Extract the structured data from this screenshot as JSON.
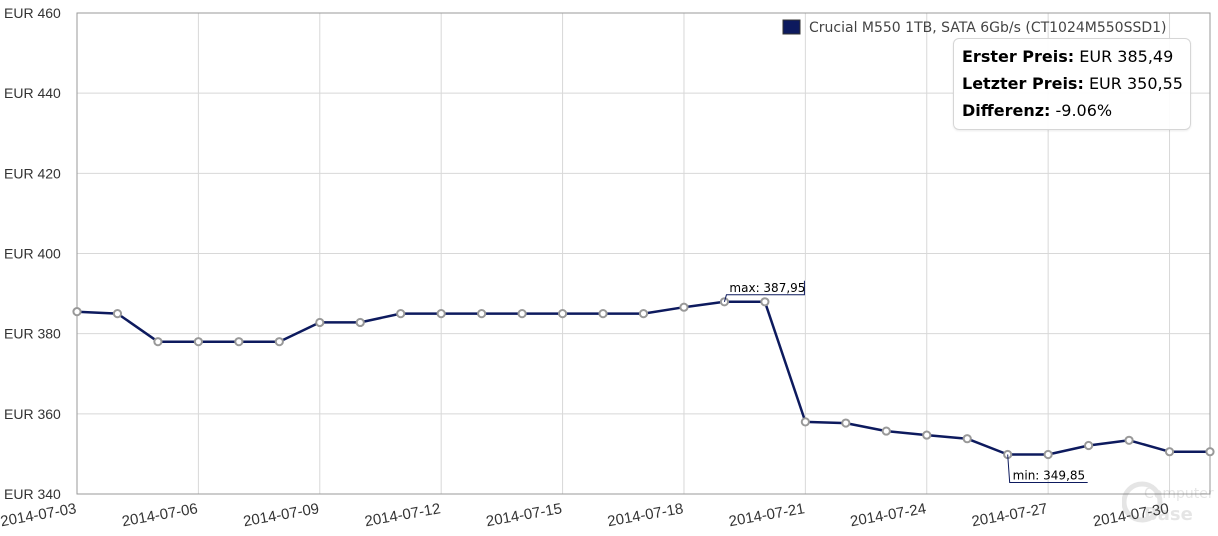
{
  "chart_data": {
    "type": "line",
    "y_tick_labels": [
      "EUR 460",
      "EUR 440",
      "EUR 420",
      "EUR 400",
      "EUR 380",
      "EUR 360",
      "EUR 340"
    ],
    "y_ticks": [
      460,
      440,
      420,
      400,
      380,
      360,
      340
    ],
    "ylim": [
      340,
      460
    ],
    "x_tick_labels": [
      "2014-07-03",
      "2014-07-06",
      "2014-07-09",
      "2014-07-12",
      "2014-07-15",
      "2014-07-18",
      "2014-07-21",
      "2014-07-24",
      "2014-07-27",
      "2014-07-30"
    ],
    "xlim": [
      "2014-07-03",
      "2014-07-31"
    ],
    "grid": true,
    "legend_position": "top-right",
    "series": [
      {
        "name": "Crucial M550 1TB, SATA 6Gb/s (CT1024M550SSD1)",
        "color": "#0d1a5e",
        "x": [
          "2014-07-03",
          "2014-07-04",
          "2014-07-05",
          "2014-07-06",
          "2014-07-07",
          "2014-07-08",
          "2014-07-09",
          "2014-07-10",
          "2014-07-11",
          "2014-07-12",
          "2014-07-13",
          "2014-07-14",
          "2014-07-15",
          "2014-07-16",
          "2014-07-17",
          "2014-07-18",
          "2014-07-19",
          "2014-07-20",
          "2014-07-21",
          "2014-07-22",
          "2014-07-23",
          "2014-07-24",
          "2014-07-25",
          "2014-07-26",
          "2014-07-27",
          "2014-07-28",
          "2014-07-29",
          "2014-07-30",
          "2014-07-31"
        ],
        "values": [
          385.49,
          385.0,
          378.0,
          378.0,
          378.0,
          378.0,
          382.8,
          382.8,
          385.0,
          385.0,
          385.0,
          385.0,
          385.0,
          385.0,
          385.0,
          386.6,
          387.95,
          387.95,
          358.0,
          357.7,
          355.7,
          354.7,
          353.8,
          349.85,
          349.85,
          352.1,
          353.4,
          350.55,
          350.55
        ]
      }
    ],
    "annotations": [
      {
        "label": "max: 387,95",
        "x": "2014-07-19",
        "y": 387.95
      },
      {
        "label": "min: 349,85",
        "x": "2014-07-26",
        "y": 349.85
      }
    ]
  },
  "tooltip": {
    "first_label": "Erster Preis:",
    "first_value": "EUR 385,49",
    "last_label": "Letzter Preis:",
    "last_value": "EUR 350,55",
    "diff_label": "Differenz:",
    "diff_value": "-9.06%"
  },
  "watermark": {
    "text_top": "Computer",
    "text_bottom": "Base"
  }
}
